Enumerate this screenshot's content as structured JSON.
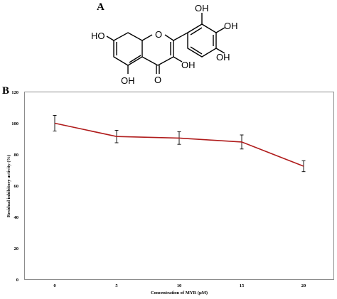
{
  "panels": {
    "a": "A",
    "b": "B"
  },
  "molecule": {
    "atoms": {
      "oh_top": "OH",
      "oh_right": "OH",
      "oh_para": "OH",
      "oh_left": "HO",
      "oh_c3": "OH",
      "oh_bottom": "OH",
      "ring_o": "O",
      "carbonyl_o": "O"
    }
  },
  "chart_data": {
    "type": "line",
    "x": [
      0,
      5,
      10,
      15,
      20
    ],
    "y": [
      100,
      91.5,
      90.5,
      88,
      72.5
    ],
    "error": [
      5,
      4,
      4,
      4.5,
      3.5
    ],
    "xlabel": "Concentration of MYR (μM)",
    "ylabel": "Residual inhibitory activity (%)",
    "ylim": [
      0,
      120
    ],
    "yticks": [
      0,
      20,
      40,
      60,
      80,
      100,
      120
    ],
    "xticks": [
      "0",
      "5",
      "10",
      "15",
      "20"
    ],
    "grid": false,
    "line_color": "#b01c1c",
    "axis_color": "#8c8c8c"
  }
}
